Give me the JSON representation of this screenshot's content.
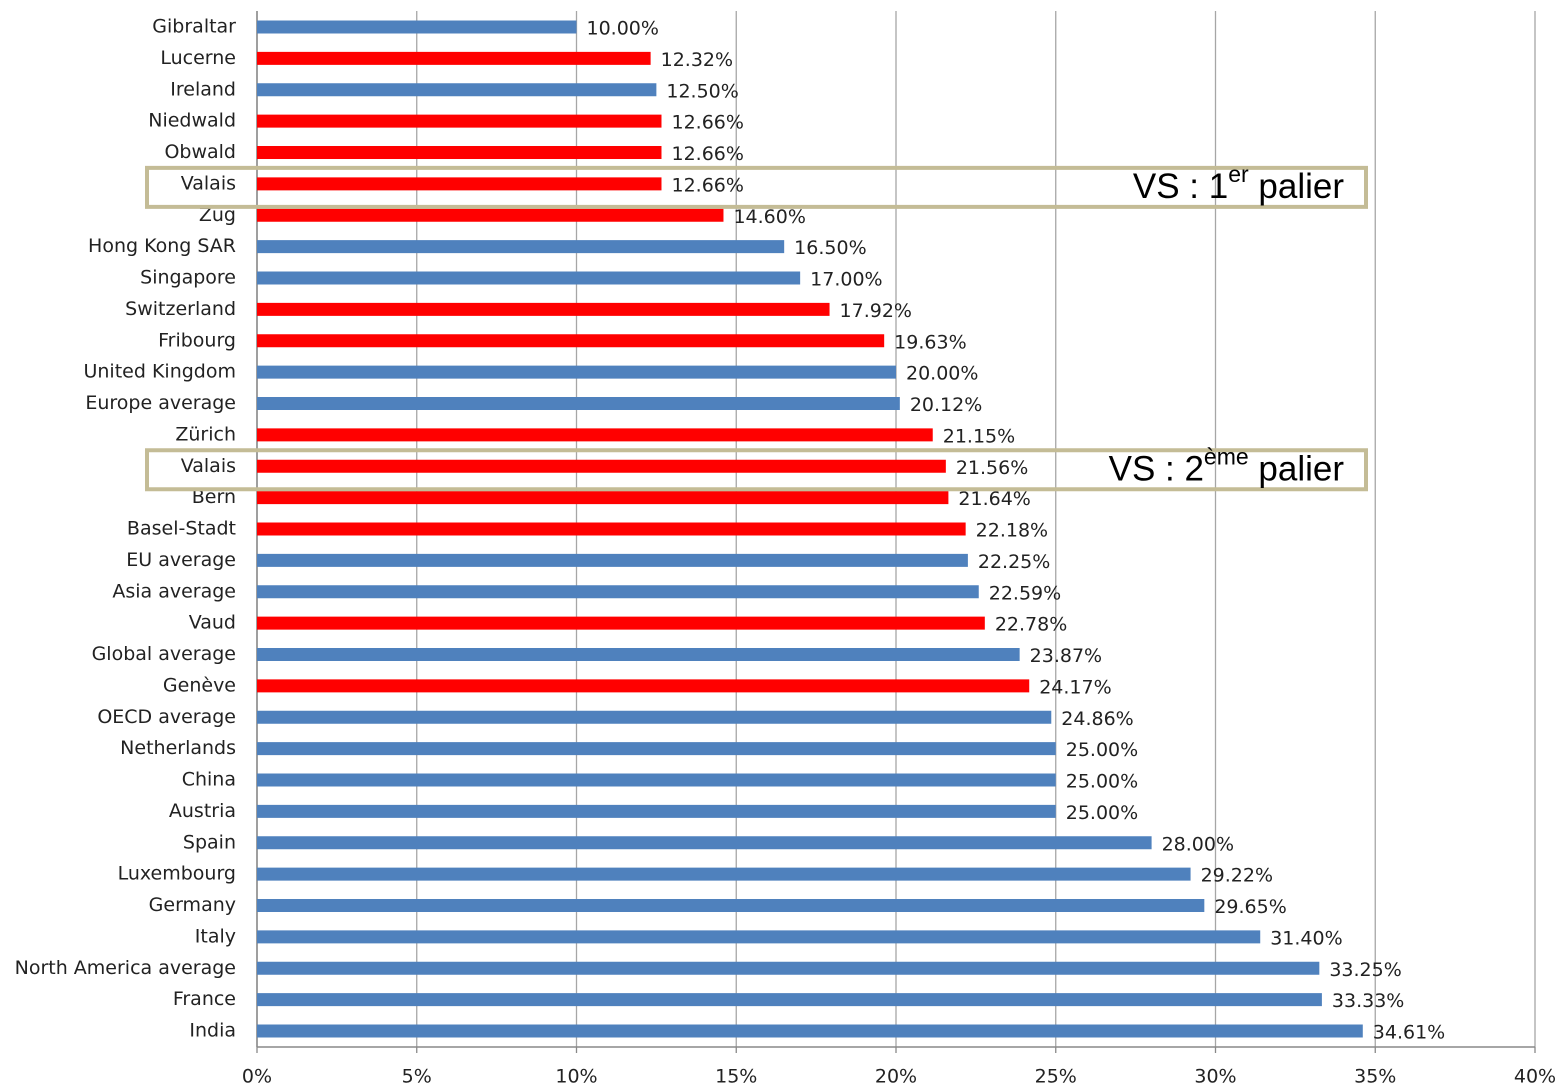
{
  "chart_data": {
    "type": "barh",
    "categories": [
      "Gibraltar",
      "Lucerne",
      "Ireland",
      "Niedwald",
      "Obwald",
      "Valais",
      "Zug",
      "Hong Kong SAR",
      "Singapore",
      "Switzerland",
      "Fribourg",
      "United Kingdom",
      "Europe average",
      "Zürich",
      "Valais",
      "Bern",
      "Basel-Stadt",
      "EU average",
      "Asia average",
      "Vaud",
      "Global average",
      "Genève",
      "OECD average",
      "Netherlands",
      "China",
      "Austria",
      "Spain",
      "Luxembourg",
      "Germany",
      "Italy",
      "North America average",
      "France",
      "India"
    ],
    "values": [
      10.0,
      12.32,
      12.5,
      12.66,
      12.66,
      12.66,
      14.6,
      16.5,
      17.0,
      17.92,
      19.63,
      20.0,
      20.12,
      21.15,
      21.56,
      21.64,
      22.18,
      22.25,
      22.59,
      22.78,
      23.87,
      24.17,
      24.86,
      25.0,
      25.0,
      25.0,
      28.0,
      29.22,
      29.65,
      31.4,
      33.25,
      33.33,
      34.61
    ],
    "value_labels": [
      "10.00%",
      "12.32%",
      "12.50%",
      "12.66%",
      "12.66%",
      "12.66%",
      "14.60%",
      "16.50%",
      "17.00%",
      "17.92%",
      "19.63%",
      "20.00%",
      "20.12%",
      "21.15%",
      "21.56%",
      "21.64%",
      "22.18%",
      "22.25%",
      "22.59%",
      "22.78%",
      "23.87%",
      "24.17%",
      "24.86%",
      "25.00%",
      "25.00%",
      "25.00%",
      "28.00%",
      "29.22%",
      "29.65%",
      "31.40%",
      "33.25%",
      "33.33%",
      "34.61%"
    ],
    "colors": [
      "#4f81bd",
      "#ff0000",
      "#4f81bd",
      "#ff0000",
      "#ff0000",
      "#ff0000",
      "#ff0000",
      "#4f81bd",
      "#4f81bd",
      "#ff0000",
      "#ff0000",
      "#4f81bd",
      "#4f81bd",
      "#ff0000",
      "#ff0000",
      "#ff0000",
      "#ff0000",
      "#4f81bd",
      "#4f81bd",
      "#ff0000",
      "#4f81bd",
      "#ff0000",
      "#4f81bd",
      "#4f81bd",
      "#4f81bd",
      "#4f81bd",
      "#4f81bd",
      "#4f81bd",
      "#4f81bd",
      "#4f81bd",
      "#4f81bd",
      "#4f81bd",
      "#4f81bd"
    ],
    "xlim": [
      0,
      40
    ],
    "xticks": [
      {
        "value": 0,
        "label": "0%"
      },
      {
        "value": 5,
        "label": "5%"
      },
      {
        "value": 10,
        "label": "10%"
      },
      {
        "value": 15,
        "label": "15%"
      },
      {
        "value": 20,
        "label": "20%"
      },
      {
        "value": 25,
        "label": "25%"
      },
      {
        "value": 30,
        "label": "30%"
      },
      {
        "value": 35,
        "label": "35%"
      },
      {
        "value": 40,
        "label": "40%"
      }
    ],
    "grid": true,
    "annotations": [
      {
        "parts": [
          "VS : 1",
          "er",
          " palier"
        ]
      },
      {
        "parts": [
          "VS : 2",
          "ème",
          " palier"
        ]
      }
    ]
  }
}
